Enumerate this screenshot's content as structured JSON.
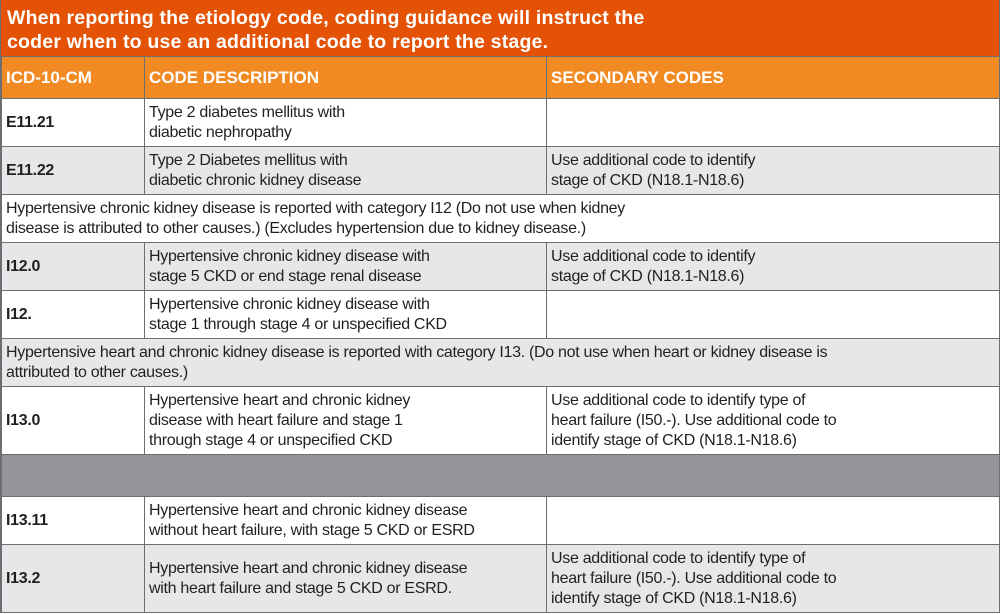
{
  "title": "When reporting the etiology code, coding guidance will instruct the\ncoder when to use an additional code to report the stage.",
  "headers": [
    "ICD-10-CM",
    "CODE DESCRIPTION",
    "SECONDARY CODES"
  ],
  "colors": {
    "title_bg": "#e35205",
    "header_bg": "#f28a24",
    "row_gray": "#e6e7e8",
    "separator": "#939598"
  },
  "rows": [
    {
      "type": "row",
      "shade": "white",
      "code": "E11.21",
      "description": "Type 2 diabetes mellitus with\ndiabetic nephropathy",
      "secondary": ""
    },
    {
      "type": "row",
      "shade": "gray",
      "code": "E11.22",
      "description": "Type 2 Diabetes mellitus with\ndiabetic chronic kidney disease",
      "secondary": "Use additional code to identify\nstage of CKD (N18.1-N18.6)"
    },
    {
      "type": "note",
      "shade": "white",
      "text": "Hypertensive chronic kidney disease is reported with category I12 (Do not use when kidney\ndisease is attributed to other causes.) (Excludes hypertension due to kidney disease.)"
    },
    {
      "type": "row",
      "shade": "gray",
      "code": "I12.0",
      "description": "Hypertensive chronic kidney disease with\nstage 5 CKD or end stage renal disease",
      "secondary": "Use additional code to identify\nstage of CKD (N18.1-N18.6)"
    },
    {
      "type": "row",
      "shade": "white",
      "code": "I12.",
      "description": "Hypertensive chronic kidney disease with\nstage 1 through stage 4 or unspecified CKD",
      "secondary": ""
    },
    {
      "type": "note",
      "shade": "gray",
      "text": "Hypertensive heart and chronic kidney disease is reported with category I13. (Do not use when heart or kidney disease is\nattributed to other causes.)"
    },
    {
      "type": "row",
      "shade": "white",
      "code": "I13.0",
      "description": "Hypertensive heart and chronic kidney\ndisease with heart failure and stage 1\nthrough stage 4 or unspecified CKD",
      "secondary": "Use additional code to identify type of\nheart failure (I50.-). Use additional code to\nidentify stage of CKD (N18.1-N18.6)"
    },
    {
      "type": "separator",
      "shade": "dark"
    },
    {
      "type": "row",
      "shade": "white",
      "code": "I13.11",
      "description": "Hypertensive heart and chronic kidney disease\nwithout heart failure, with stage 5 CKD or ESRD",
      "secondary": ""
    },
    {
      "type": "row",
      "shade": "gray",
      "code": "I13.2",
      "description": "Hypertensive heart and chronic kidney disease\nwith heart failure and stage 5 CKD or ESRD.",
      "secondary": "Use additional code to identify type of\nheart failure (I50.-). Use additional code to\nidentify stage of CKD (N18.1-N18.6)"
    }
  ]
}
